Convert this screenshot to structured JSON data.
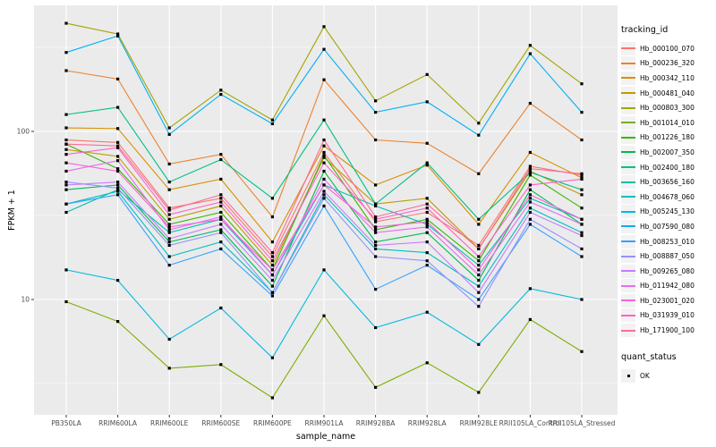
{
  "chart_data": {
    "type": "line",
    "xlabel": "sample_name",
    "ylabel": "FPKM + 1",
    "y_scale": "log10",
    "ylim": [
      2.0,
      560
    ],
    "grid": "on",
    "legend_position": "right",
    "y_ticks": [
      {
        "label": "100",
        "value": 100
      },
      {
        "label": "10",
        "value": 10
      }
    ],
    "categories": [
      "PB350LA",
      "RRIM600LA",
      "RRIM600LE",
      "RRIM600SE",
      "RRIM600PE",
      "RRIM901LA",
      "RRIM928BA",
      "RRIM928LA",
      "RRIM928LE",
      "RRII105LA_Control",
      "RRII105LA_Stressed"
    ],
    "series": [
      {
        "name": "Hb_000100_070",
        "color": "#F8766D",
        "values": [
          89,
          86,
          35,
          40,
          18,
          75,
          29,
          33,
          21,
          62,
          55
        ]
      },
      {
        "name": "Hb_000236_320",
        "color": "#EA8331",
        "values": [
          230,
          205,
          64,
          73,
          31,
          203,
          89,
          85,
          56,
          147,
          89
        ]
      },
      {
        "name": "Hb_000342_110",
        "color": "#D89000",
        "values": [
          105,
          104,
          45,
          52,
          22,
          82,
          48,
          63,
          28,
          75,
          53
        ]
      },
      {
        "name": "Hb_000481_040",
        "color": "#C09B00",
        "values": [
          78,
          71,
          30,
          36,
          16,
          70,
          37,
          40,
          20,
          58,
          42
        ]
      },
      {
        "name": "Hb_000803_300",
        "color": "#A3A500",
        "values": [
          440,
          380,
          105,
          176,
          117,
          420,
          152,
          218,
          112,
          325,
          192
        ]
      },
      {
        "name": "Hb_001014_010",
        "color": "#7CAE00",
        "values": [
          9.7,
          7.4,
          3.9,
          4.1,
          2.6,
          8.0,
          3.0,
          4.2,
          2.8,
          7.6,
          4.9
        ]
      },
      {
        "name": "Hb_001226_180",
        "color": "#39B600",
        "values": [
          84,
          60,
          28,
          33,
          15,
          72,
          26,
          30,
          17,
          55,
          35
        ]
      },
      {
        "name": "Hb_002007_350",
        "color": "#00BB4E",
        "values": [
          45,
          48,
          22,
          26,
          12,
          58,
          22,
          25,
          13,
          45,
          28
        ]
      },
      {
        "name": "Hb_002400_180",
        "color": "#00C087",
        "values": [
          126,
          139,
          50,
          68,
          40,
          117,
          37,
          65,
          30,
          57,
          45
        ]
      },
      {
        "name": "Hb_003656_160",
        "color": "#00C1AB",
        "values": [
          33,
          45,
          25,
          30,
          14,
          48,
          36,
          28,
          16,
          40,
          30
        ]
      },
      {
        "name": "Hb_004678_060",
        "color": "#00BFC4",
        "values": [
          37,
          44,
          18,
          22,
          11,
          42,
          20,
          19,
          12,
          35,
          25
        ]
      },
      {
        "name": "Hb_005245_130",
        "color": "#00BAE0",
        "values": [
          15,
          13,
          5.8,
          8.9,
          4.5,
          15,
          6.8,
          8.4,
          5.4,
          11.6,
          10
        ]
      },
      {
        "name": "Hb_007590_080",
        "color": "#00B0F6",
        "values": [
          295,
          370,
          96,
          166,
          111,
          308,
          130,
          150,
          95,
          290,
          130
        ]
      },
      {
        "name": "Hb_008253_010",
        "color": "#35A2FF",
        "values": [
          37,
          42,
          16,
          20,
          10.5,
          36,
          11.5,
          16,
          10,
          28,
          18
        ]
      },
      {
        "name": "Hb_008887_050",
        "color": "#9590FF",
        "values": [
          50,
          46,
          21,
          25,
          11,
          40,
          18,
          17,
          9.1,
          30,
          20
        ]
      },
      {
        "name": "Hb_009265_080",
        "color": "#C77CFF",
        "values": [
          48,
          50,
          23,
          28,
          13,
          44,
          21,
          22,
          11,
          33,
          24
        ]
      },
      {
        "name": "Hb_011942_080",
        "color": "#E76BF3",
        "values": [
          58,
          67,
          26,
          31,
          14,
          52,
          25,
          27,
          14,
          38,
          28
        ]
      },
      {
        "name": "Hb_023001_020",
        "color": "#FA62DB",
        "values": [
          65,
          58,
          27,
          30,
          15,
          48,
          27,
          29,
          15,
          42,
          30
        ]
      },
      {
        "name": "Hb_031939_010",
        "color": "#FF61CC",
        "values": [
          73,
          80,
          32,
          38,
          17,
          65,
          30,
          35,
          18,
          48,
          52
        ]
      },
      {
        "name": "Hb_171900_100",
        "color": "#FF6A98",
        "values": [
          84,
          82,
          34,
          42,
          19,
          89,
          31,
          37,
          20,
          60,
          56
        ]
      }
    ],
    "legend": {
      "color_title": "tracking_id",
      "shape_title": "quant_status",
      "shape_entries": [
        {
          "label": "OK",
          "marker": "black-square"
        }
      ]
    },
    "colors": {
      "panel_bg": "#EBEBEB",
      "grid_major": "#FFFFFF",
      "grid_minor": "#FFFFFF",
      "point": "#000000",
      "tick_mark": "#333333",
      "tick_text": "#4D4D4D",
      "text": "#000000",
      "legend_key_bg": "#F2F2F2"
    }
  }
}
